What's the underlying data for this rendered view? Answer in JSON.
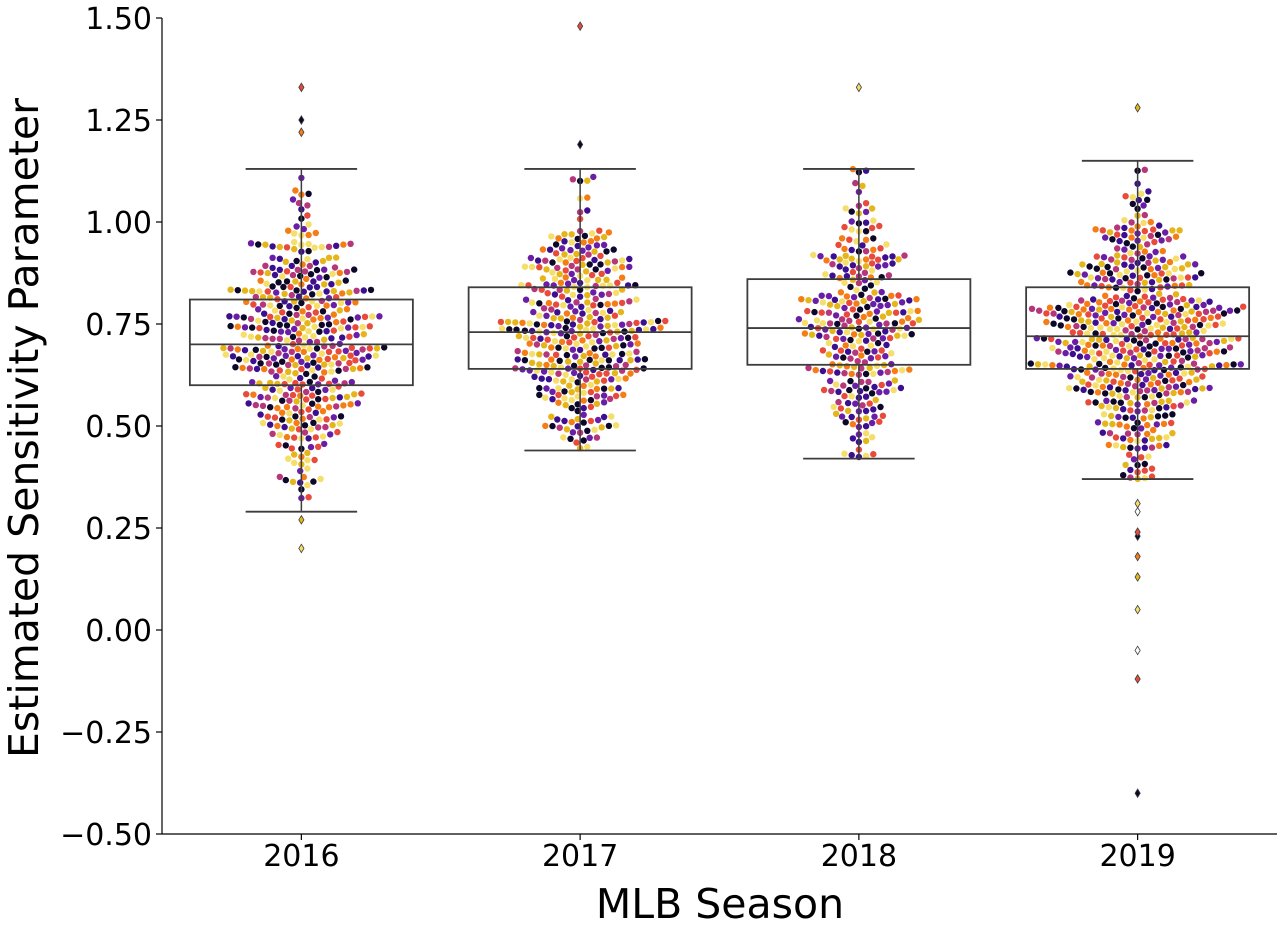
{
  "chart_data": {
    "type": "box-swarm",
    "title": "",
    "xlabel": "MLB Season",
    "ylabel": "Estimated Sensitivity Parameter",
    "categories": [
      "2016",
      "2017",
      "2018",
      "2019"
    ],
    "ylim": [
      -0.5,
      1.5
    ],
    "yticks": [
      -0.5,
      -0.25,
      0.0,
      0.25,
      0.5,
      0.75,
      1.0,
      1.25,
      1.5
    ],
    "ytick_labels": [
      "−0.50",
      "−0.25",
      "0.00",
      "0.25",
      "0.50",
      "0.75",
      "1.00",
      "1.25",
      "1.50"
    ],
    "grid": false,
    "boxes": [
      {
        "category": "2016",
        "whisker_low": 0.29,
        "q1": 0.6,
        "median": 0.7,
        "q3": 0.81,
        "whisker_high": 1.13,
        "outliers": [
          0.2,
          0.27,
          1.22,
          1.25,
          1.33
        ]
      },
      {
        "category": "2017",
        "whisker_low": 0.44,
        "q1": 0.64,
        "median": 0.73,
        "q3": 0.84,
        "whisker_high": 1.13,
        "outliers": [
          1.19,
          1.48
        ]
      },
      {
        "category": "2018",
        "whisker_low": 0.42,
        "q1": 0.65,
        "median": 0.74,
        "q3": 0.86,
        "whisker_high": 1.13,
        "outliers": [
          1.33
        ]
      },
      {
        "category": "2019",
        "whisker_low": 0.37,
        "q1": 0.64,
        "median": 0.72,
        "q3": 0.84,
        "whisker_high": 1.15,
        "outliers": [
          -0.4,
          -0.12,
          -0.05,
          0.05,
          0.13,
          0.18,
          0.23,
          0.24,
          0.29,
          0.31,
          1.28
        ]
      }
    ],
    "point_counts": [
      440,
      390,
      300,
      560
    ],
    "point_palette": [
      "#0d0829",
      "#3b0f8f",
      "#6a1ea6",
      "#b5367a",
      "#e84a3c",
      "#f57d15",
      "#e5b619",
      "#f5de6a"
    ]
  }
}
